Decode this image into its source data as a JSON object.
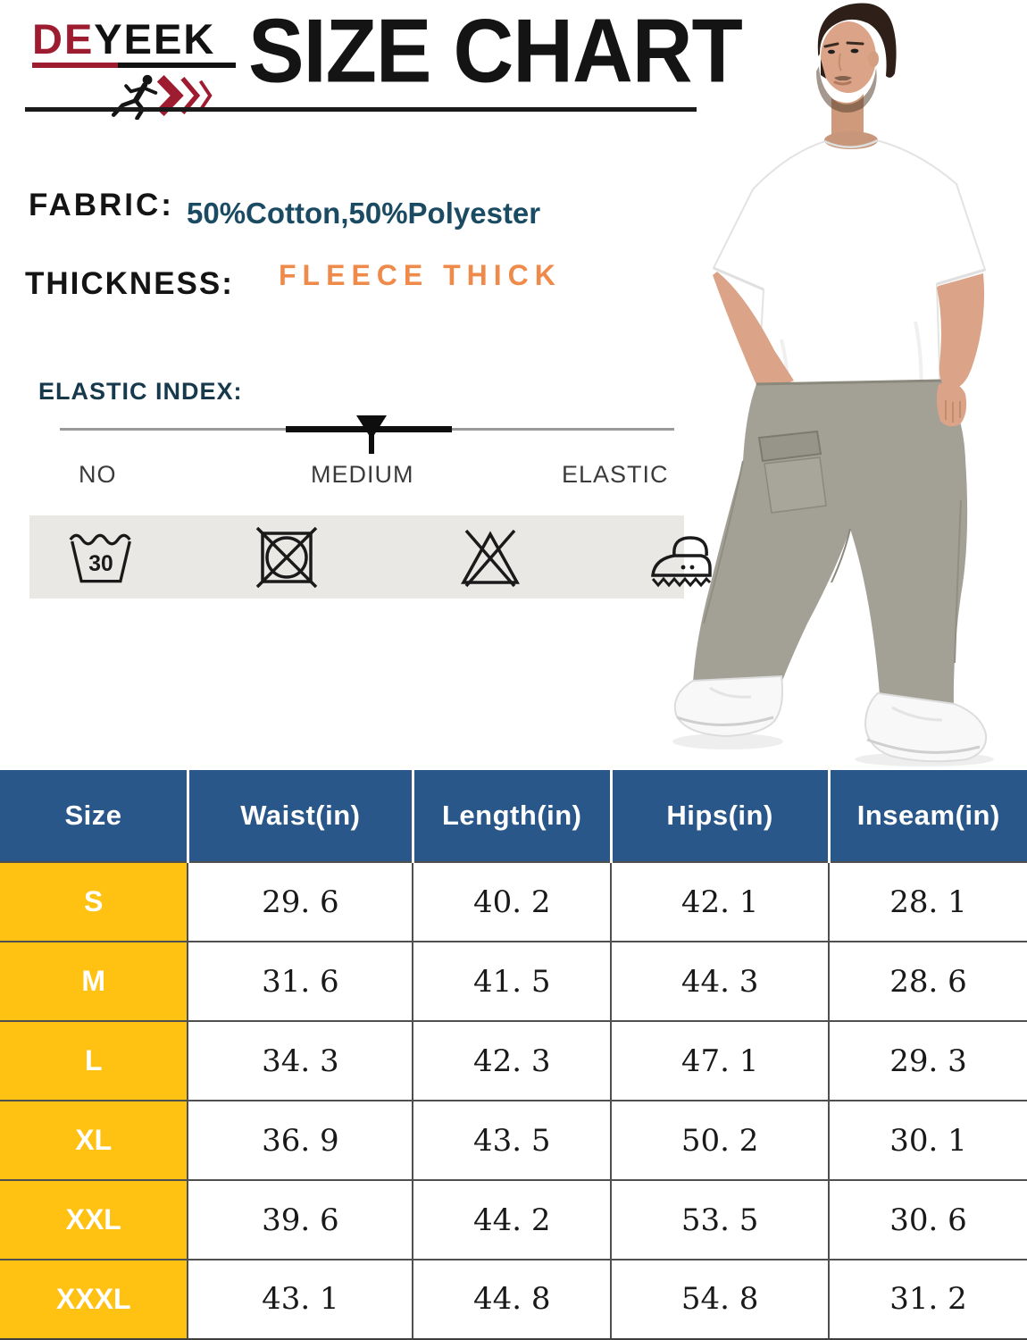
{
  "brand": {
    "name_part1": "DE",
    "name_part2": "YEEK",
    "logo_icon": "runner-with-speed-arrows-icon",
    "primary_red": "#9e1c30"
  },
  "title": "SIZE CHART",
  "specs": {
    "fabric": {
      "label": "FABRIC:",
      "value": "50%Cotton,50%Polyester",
      "value_color": "#1b4b63"
    },
    "thickness": {
      "label": "THICKNESS:",
      "value": "FLEECE THICK",
      "value_color": "#ef8b4a"
    }
  },
  "elastic_index": {
    "label": "ELASTIC INDEX:",
    "levels": [
      "NO",
      "MEDIUM",
      "ELASTIC"
    ],
    "selected": "MEDIUM"
  },
  "care_symbols": {
    "wash_temp": "30",
    "items": [
      "machine-wash-30-icon",
      "do-not-tumble-dry-icon",
      "do-not-bleach-icon",
      "iron-icon"
    ]
  },
  "chart_data": {
    "type": "table",
    "title": "SIZE CHART",
    "columns": [
      "Size",
      "Waist(in)",
      "Length(in)",
      "Hips(in)",
      "Inseam(in)"
    ],
    "rows": [
      [
        "S",
        "29. 6",
        "40. 2",
        "42. 1",
        "28. 1"
      ],
      [
        "M",
        "31. 6",
        "41. 5",
        "44. 3",
        "28. 6"
      ],
      [
        "L",
        "34. 3",
        "42. 3",
        "47. 1",
        "29. 3"
      ],
      [
        "XL",
        "36. 9",
        "43. 5",
        "50. 2",
        "30. 1"
      ],
      [
        "XXL",
        "39. 6",
        "44. 2",
        "53. 5",
        "30. 6"
      ],
      [
        "XXXL",
        "43. 1",
        "44. 8",
        "54. 8",
        "31. 2"
      ]
    ],
    "header_bg": "#29578a",
    "size_column_bg": "#ffc112",
    "legend_position": "none",
    "grid": true
  }
}
